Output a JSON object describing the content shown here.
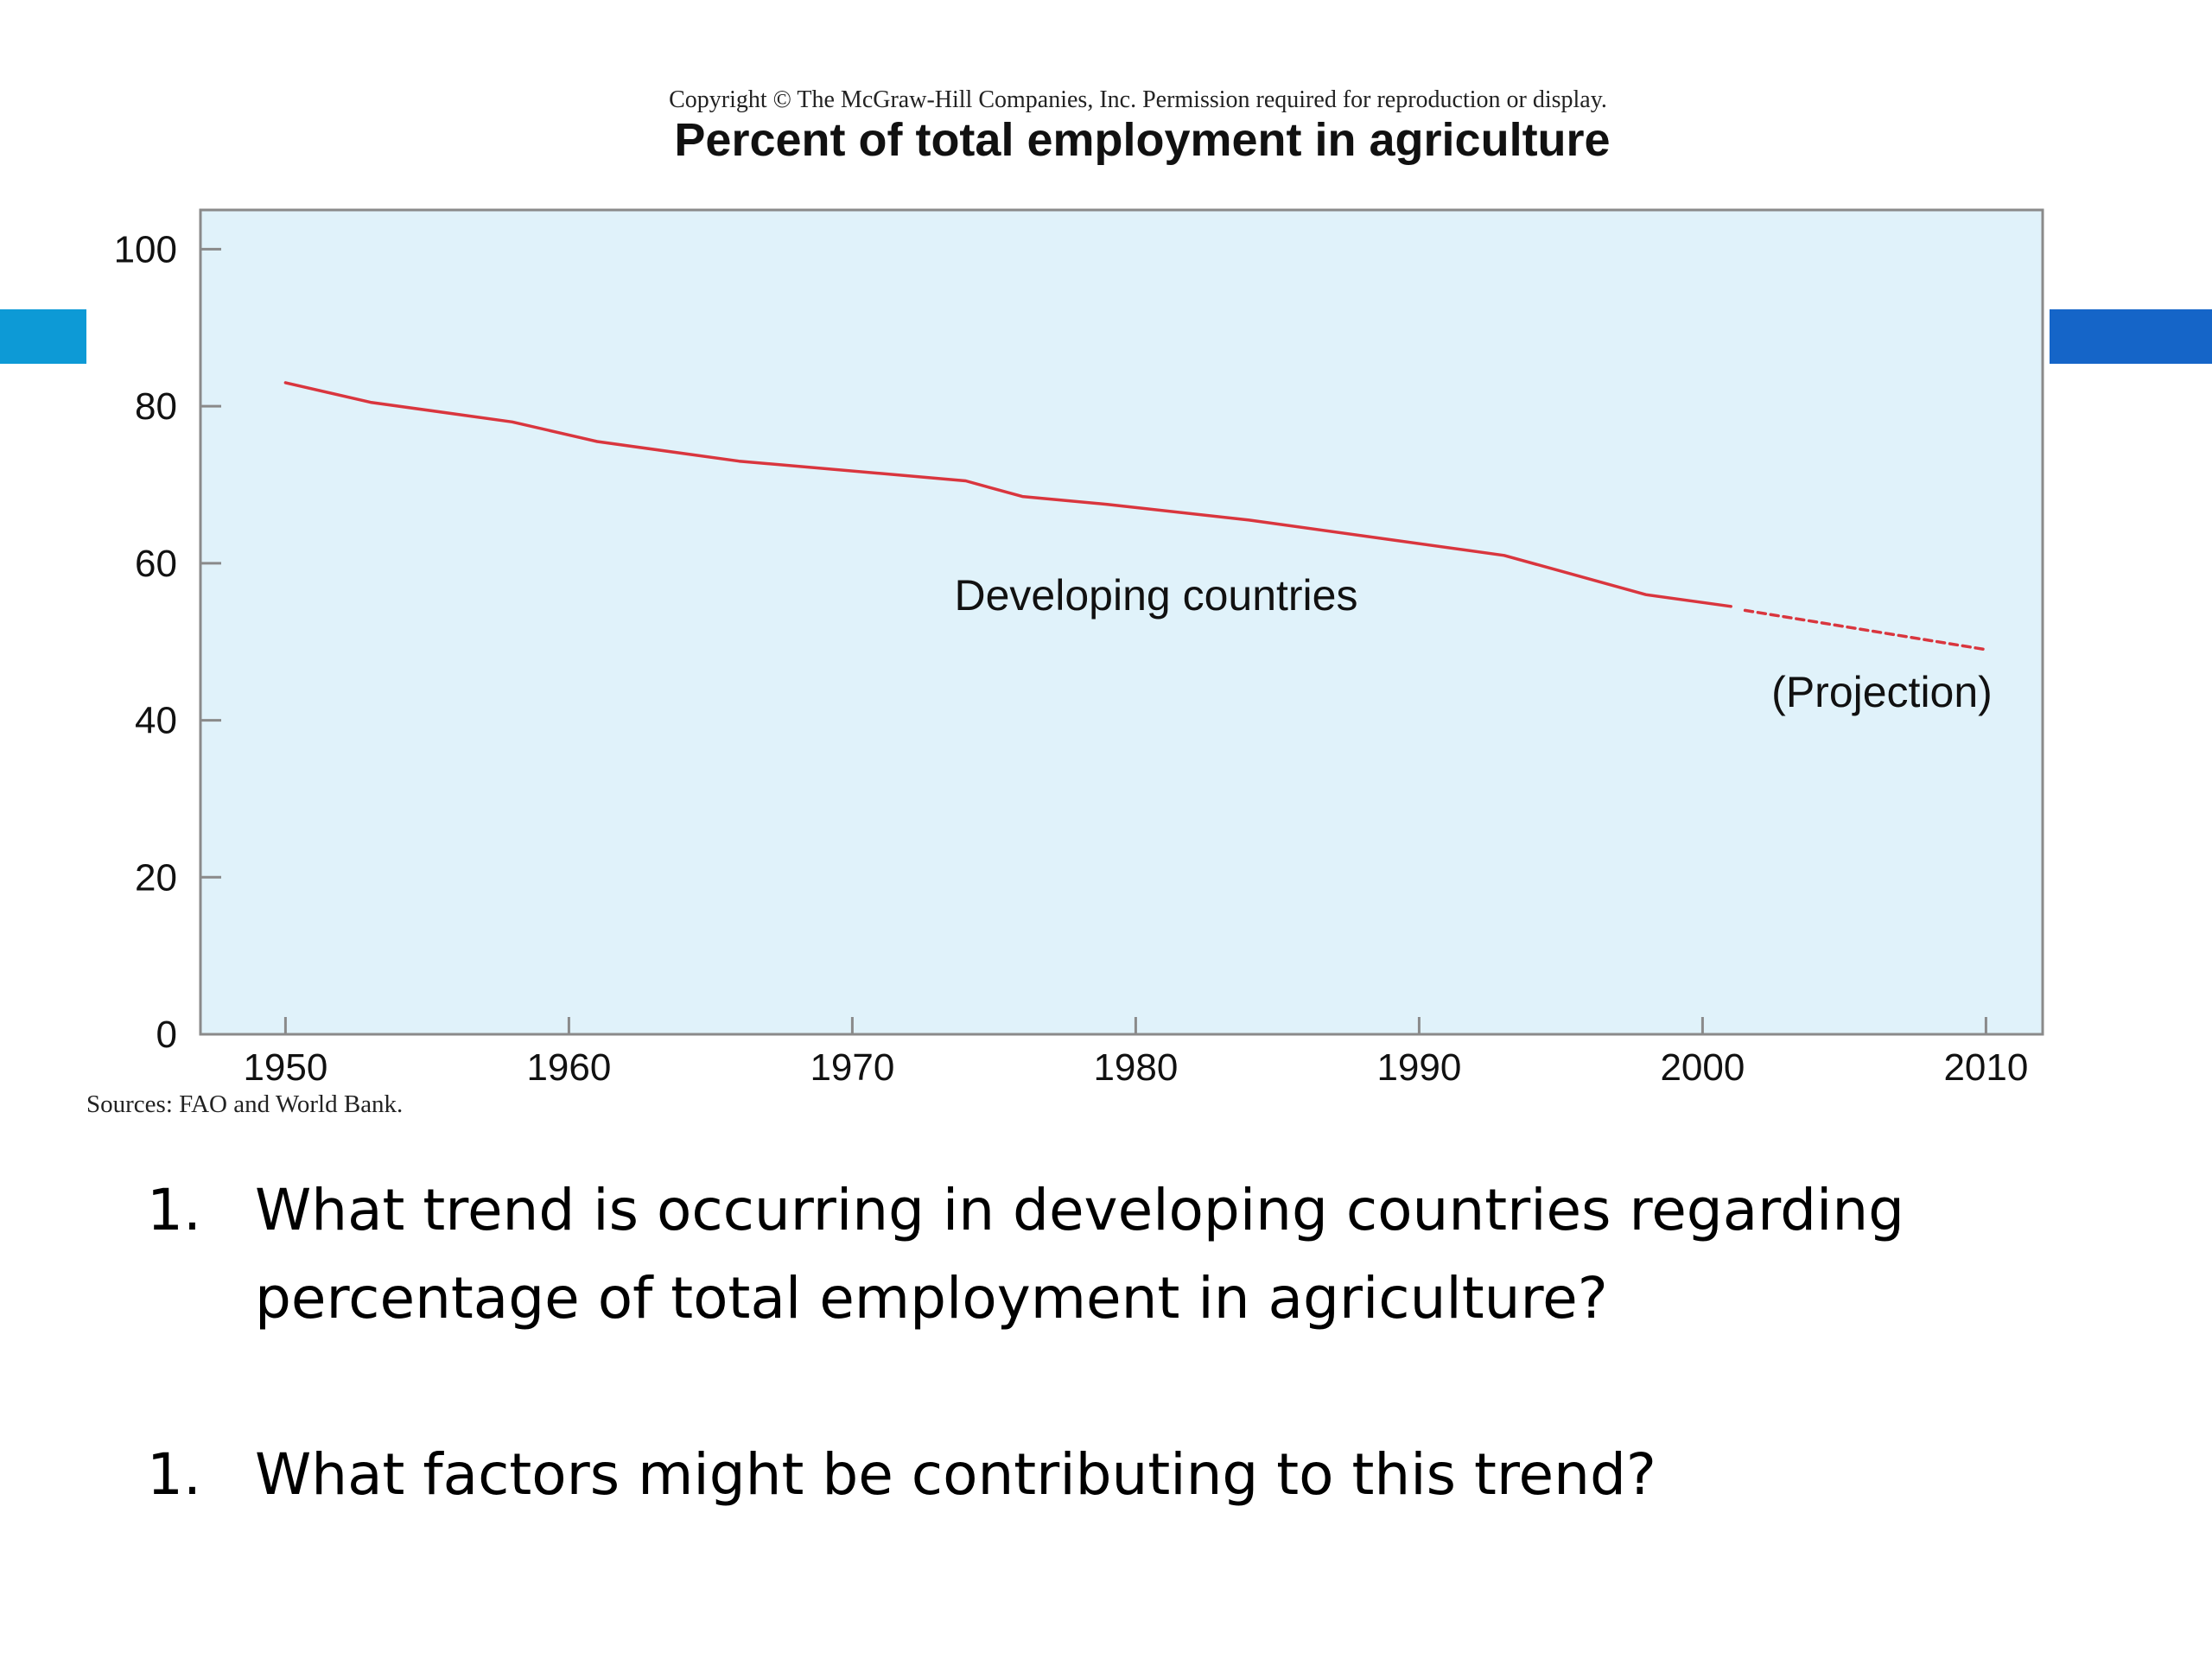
{
  "copyright": "Copyright © The McGraw-Hill Companies, Inc. Permission required for reproduction or display.",
  "source": "Sources: FAO and World Bank.",
  "colors": {
    "plot_background": "#e0f2fa",
    "line": "#d9363e",
    "accent_left": "#0d9ad6",
    "accent_right": "#1565c8"
  },
  "chart_data": {
    "type": "line",
    "title": "Percent of total employment in agriculture",
    "xlabel": "",
    "ylabel": "",
    "xlim": [
      1947,
      2012
    ],
    "ylim": [
      0,
      105
    ],
    "x_ticks": [
      "1950",
      "1960",
      "1970",
      "1980",
      "1990",
      "2000",
      "2010"
    ],
    "y_ticks": [
      "0",
      "20",
      "40",
      "60",
      "80",
      "100"
    ],
    "grid": false,
    "series": [
      {
        "name": "Developing countries",
        "style": "solid",
        "x": [
          1950,
          1953,
          1958,
          1961,
          1966,
          1974,
          1976,
          1979,
          1984,
          1989,
          1993,
          1998,
          2001
        ],
        "y": [
          83,
          80.5,
          78,
          75.5,
          73,
          70.5,
          68.5,
          67.5,
          65.5,
          63,
          61,
          56,
          54.5
        ]
      },
      {
        "name": "(Projection)",
        "style": "dashed",
        "x": [
          2001.5,
          2010
        ],
        "y": [
          54,
          49
        ]
      }
    ],
    "annotations": [
      "Developing countries",
      "(Projection)"
    ]
  },
  "questions": [
    {
      "number": "1.",
      "text": "What trend is occurring in developing countries regarding percentage of total employment in agriculture?"
    },
    {
      "number": "1.",
      "text": "What factors might be contributing to this trend?"
    }
  ]
}
